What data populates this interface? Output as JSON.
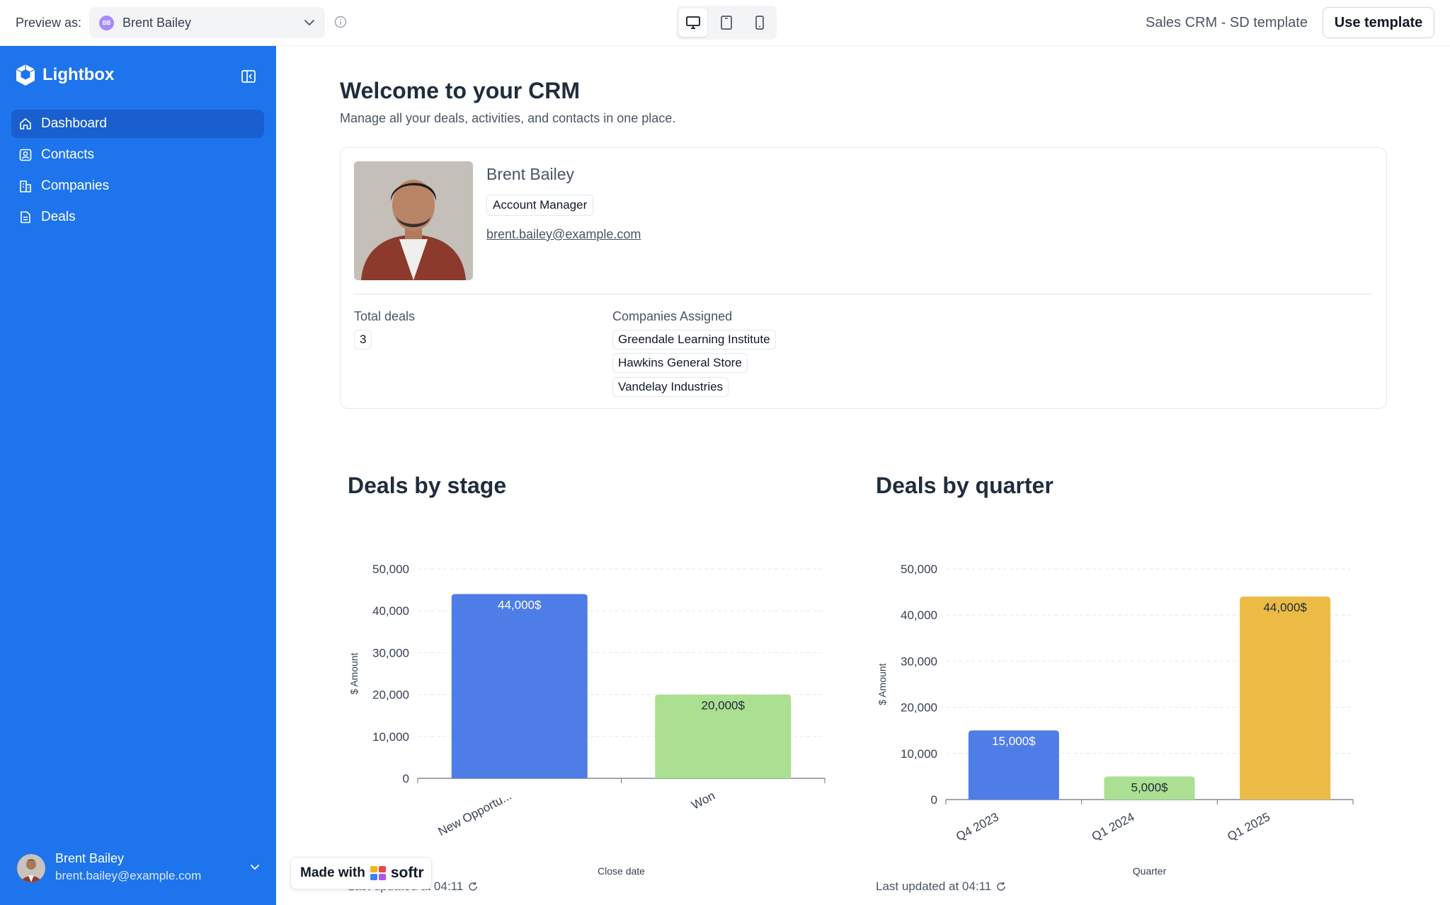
{
  "topbar": {
    "preview_label": "Preview as:",
    "selected_user": "Brent Bailey",
    "user_initials": "BB",
    "template_name": "Sales CRM - SD template",
    "use_template_label": "Use template"
  },
  "sidebar": {
    "brand": "Lightbox",
    "items": [
      {
        "label": "Dashboard",
        "icon": "home-icon",
        "active": true
      },
      {
        "label": "Contacts",
        "icon": "contact-card-icon",
        "active": false
      },
      {
        "label": "Companies",
        "icon": "building-icon",
        "active": false
      },
      {
        "label": "Deals",
        "icon": "document-icon",
        "active": false
      }
    ],
    "user": {
      "name": "Brent Bailey",
      "email": "brent.bailey@example.com"
    },
    "color": "#1e74ec"
  },
  "main": {
    "title": "Welcome to your CRM",
    "subtitle": "Manage all your deals, activities, and contacts in one place.",
    "profile": {
      "name": "Brent Bailey",
      "role": "Account Manager",
      "email": "brent.bailey@example.com",
      "total_deals_label": "Total deals",
      "total_deals_value": "3",
      "companies_label": "Companies Assigned",
      "companies": [
        "Greendale Learning Institute",
        "Hawkins General Store",
        "Vandelay Industries"
      ]
    },
    "made_with": {
      "prefix": "Made with",
      "brand": "softr"
    }
  },
  "chart_data": [
    {
      "type": "bar",
      "title": "Deals by stage",
      "categories": [
        "New Opportu...",
        "Won"
      ],
      "values": [
        44000,
        20000
      ],
      "data_labels": [
        "44,000$",
        "20,000$"
      ],
      "colors": [
        "#4f7de8",
        "#abdf92"
      ],
      "ylabel": "$ Amount",
      "xlabel": "Close date",
      "ylim": [
        0,
        50000
      ],
      "yticks": [
        "0",
        "10,000",
        "20,000",
        "30,000",
        "40,000",
        "50,000"
      ],
      "updated": "Last updated at 04:11"
    },
    {
      "type": "bar",
      "title": "Deals by quarter",
      "categories": [
        "Q4 2023",
        "Q1 2024",
        "Q1 2025"
      ],
      "values": [
        15000,
        5000,
        44000
      ],
      "data_labels": [
        "15,000$",
        "5,000$",
        "44,000$"
      ],
      "colors": [
        "#4f7de8",
        "#abdf92",
        "#ecbb46"
      ],
      "ylabel": "$ Amount",
      "xlabel": "Quarter",
      "ylim": [
        0,
        50000
      ],
      "yticks": [
        "0",
        "10,000",
        "20,000",
        "30,000",
        "40,000",
        "50,000"
      ],
      "updated": "Last updated at 04:11"
    }
  ]
}
